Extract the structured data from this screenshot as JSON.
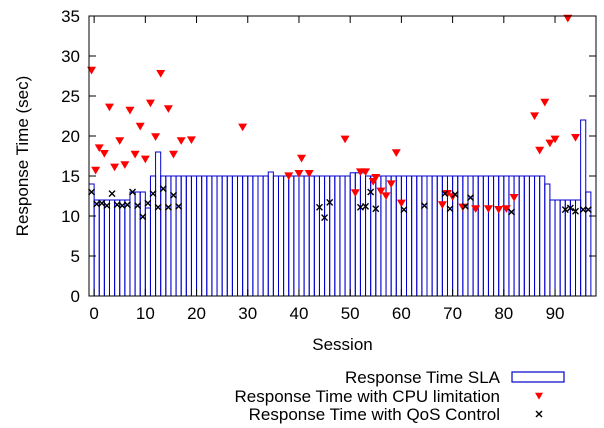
{
  "chart_data": {
    "type": "line",
    "title": "",
    "xlabel": "Session",
    "ylabel": "Response Time (sec)",
    "xlim": [
      -1,
      98
    ],
    "ylim": [
      0,
      35
    ],
    "xticks": [
      0,
      10,
      20,
      30,
      40,
      50,
      60,
      70,
      80,
      90
    ],
    "yticks": [
      0,
      5,
      10,
      15,
      20,
      25,
      30,
      35
    ],
    "grid": false,
    "legend_position": "bottom-right",
    "series": [
      {
        "name": "Response Time SLA",
        "style": "steps-boxes",
        "color": "#0000cc",
        "steps": [
          {
            "x": [
              -1,
              0
            ],
            "y": 14
          },
          {
            "x": [
              0,
              7
            ],
            "y": 12
          },
          {
            "x": [
              7,
              10
            ],
            "y": 13
          },
          {
            "x": [
              10,
              11
            ],
            "y": 11
          },
          {
            "x": [
              11,
              12
            ],
            "y": 15
          },
          {
            "x": [
              12,
              13
            ],
            "y": 18
          },
          {
            "x": [
              13,
              34
            ],
            "y": 15
          },
          {
            "x": [
              34,
              35
            ],
            "y": 15.5
          },
          {
            "x": [
              35,
              50
            ],
            "y": 15
          },
          {
            "x": [
              50,
              53
            ],
            "y": 15.4
          },
          {
            "x": [
              53,
              88
            ],
            "y": 15
          },
          {
            "x": [
              88,
              89
            ],
            "y": 14
          },
          {
            "x": [
              89,
              95
            ],
            "y": 12
          },
          {
            "x": [
              95,
              96
            ],
            "y": 22
          },
          {
            "x": [
              96,
              97
            ],
            "y": 13
          }
        ]
      },
      {
        "name": "Response Time with CPU limitation",
        "style": "triangle-down",
        "color": "#ff0000",
        "points": [
          [
            -0.5,
            28.2
          ],
          [
            0.3,
            15.7
          ],
          [
            1,
            18.5
          ],
          [
            2,
            17.8
          ],
          [
            3,
            23.6
          ],
          [
            4,
            16.1
          ],
          [
            5,
            19.4
          ],
          [
            6,
            16.4
          ],
          [
            7,
            23.2
          ],
          [
            8,
            17.7
          ],
          [
            9,
            21.2
          ],
          [
            10,
            17.1
          ],
          [
            11,
            24.1
          ],
          [
            12,
            19.9
          ],
          [
            13,
            27.8
          ],
          [
            14.5,
            23.4
          ],
          [
            15.5,
            17.7
          ],
          [
            17,
            19.4
          ],
          [
            19,
            19.5
          ],
          [
            29,
            21.1
          ],
          [
            38,
            15.0
          ],
          [
            40,
            15.3
          ],
          [
            40.5,
            17.2
          ],
          [
            42,
            15.3
          ],
          [
            49,
            19.6
          ],
          [
            51,
            12.9
          ],
          [
            52,
            15.5
          ],
          [
            53,
            15.5
          ],
          [
            54.5,
            14.3
          ],
          [
            55,
            14.8
          ],
          [
            56,
            13.1
          ],
          [
            57,
            12.5
          ],
          [
            58,
            14.0
          ],
          [
            59,
            17.9
          ],
          [
            60,
            11.6
          ],
          [
            68,
            11.4
          ],
          [
            69,
            12.8
          ],
          [
            70,
            12.4
          ],
          [
            72,
            11.1
          ],
          [
            74.5,
            10.9
          ],
          [
            77,
            10.9
          ],
          [
            79,
            10.8
          ],
          [
            80.5,
            10.9
          ],
          [
            82,
            12.3
          ],
          [
            86,
            22.5
          ],
          [
            87,
            18.2
          ],
          [
            88,
            24.2
          ],
          [
            89,
            19.1
          ],
          [
            90,
            19.6
          ],
          [
            92.5,
            34.7
          ],
          [
            94,
            19.8
          ]
        ]
      },
      {
        "name": "Response Time with QoS Control",
        "style": "x",
        "color": "#000000",
        "points": [
          [
            -0.5,
            13.0
          ],
          [
            0.5,
            11.5
          ],
          [
            1.5,
            11.6
          ],
          [
            2.5,
            11.3
          ],
          [
            3.5,
            12.8
          ],
          [
            4.5,
            11.4
          ],
          [
            5.5,
            11.3
          ],
          [
            6.5,
            11.4
          ],
          [
            7.5,
            13.0
          ],
          [
            8.5,
            11.3
          ],
          [
            9.5,
            9.9
          ],
          [
            10.5,
            11.6
          ],
          [
            11.5,
            12.8
          ],
          [
            12.5,
            11.1
          ],
          [
            13.5,
            13.4
          ],
          [
            14.5,
            11.1
          ],
          [
            15.5,
            12.6
          ],
          [
            16.5,
            11.2
          ],
          [
            44,
            11.1
          ],
          [
            45,
            9.8
          ],
          [
            46,
            11.7
          ],
          [
            52,
            11.1
          ],
          [
            53,
            11.2
          ],
          [
            54,
            13.0
          ],
          [
            55,
            10.9
          ],
          [
            60.5,
            10.8
          ],
          [
            64.5,
            11.3
          ],
          [
            68.5,
            12.8
          ],
          [
            69.5,
            10.9
          ],
          [
            70.5,
            12.7
          ],
          [
            72.5,
            11.2
          ],
          [
            73.5,
            12.3
          ],
          [
            81.5,
            10.5
          ],
          [
            92,
            10.8
          ],
          [
            93,
            11.0
          ],
          [
            94,
            10.6
          ],
          [
            95.5,
            10.8
          ],
          [
            96.5,
            10.8
          ]
        ]
      }
    ]
  }
}
